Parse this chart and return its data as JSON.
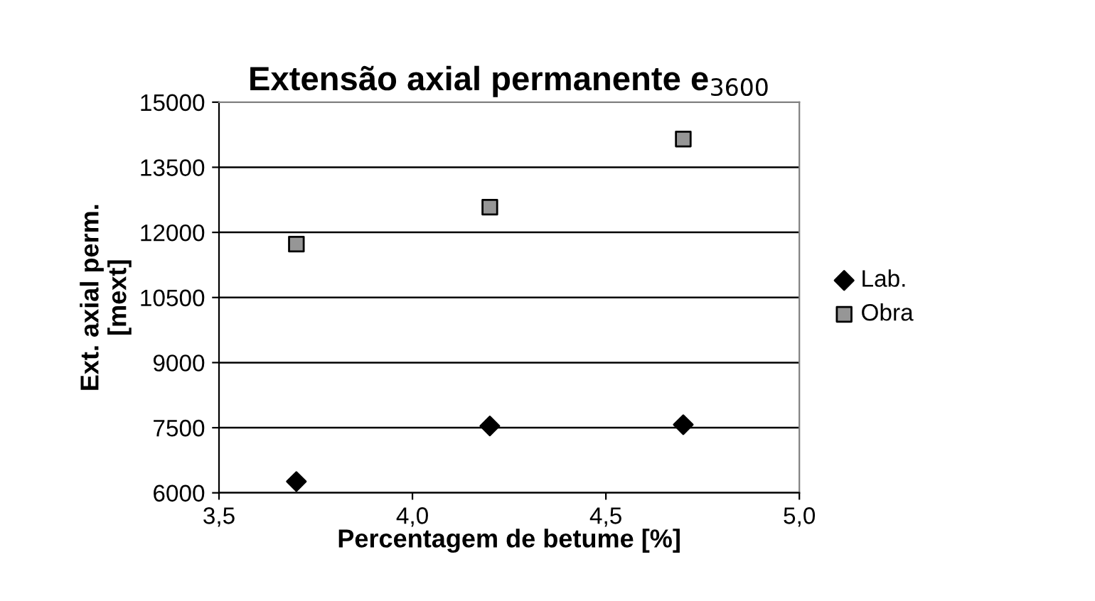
{
  "chart_data": {
    "type": "scatter",
    "title": "Extensão axial permanente e$_{3600}$",
    "xlabel": "Percentagem de betume [%]",
    "ylabel": "Ext. axial perm.\n[mext]",
    "series": [
      {
        "name": "Lab.",
        "color": "#000000",
        "marker": "diamond",
        "x": [
          3.7,
          4.2,
          4.7
        ],
        "values": [
          6260,
          7540,
          7570
        ]
      },
      {
        "name": "Obra",
        "color": "#969696",
        "marker": "square",
        "x": [
          3.7,
          4.2,
          4.7
        ],
        "values": [
          11730,
          12580,
          14150
        ]
      }
    ],
    "xlim": [
      3.5,
      5.0
    ],
    "xticks": [
      {
        "value": 3.5,
        "label": "3,5"
      },
      {
        "value": 4.0,
        "label": "4,0"
      },
      {
        "value": 4.5,
        "label": "4,5"
      },
      {
        "value": 5.0,
        "label": "5,0"
      }
    ],
    "ylim": [
      6000,
      15000
    ],
    "yticks": [
      6000,
      7500,
      9000,
      10500,
      12000,
      13500,
      15000
    ],
    "grid": "y",
    "legend": "right"
  }
}
